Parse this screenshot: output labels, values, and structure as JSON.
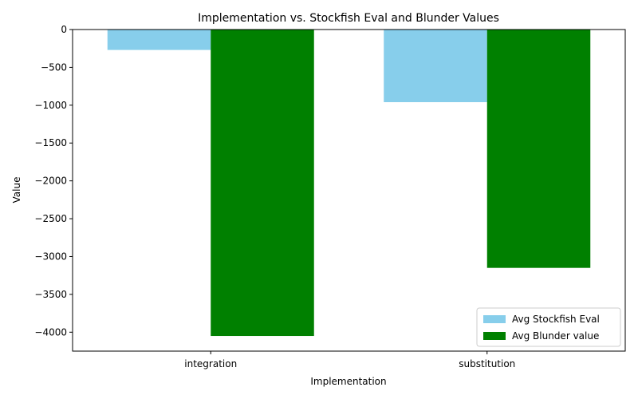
{
  "chart_data": {
    "type": "bar",
    "title": "Implementation vs. Stockfish Eval and Blunder Values",
    "xlabel": "Implementation",
    "ylabel": "Value",
    "categories": [
      "integration",
      "substitution"
    ],
    "series": [
      {
        "name": "Avg Stockfish Eval",
        "values": [
          -270,
          -960
        ],
        "color": "#87ceeb"
      },
      {
        "name": "Avg Blunder value",
        "values": [
          -4050,
          -3150
        ],
        "color": "#008000"
      }
    ],
    "ylim": [
      -4250,
      0
    ],
    "yticks": [
      0,
      -500,
      -1000,
      -1500,
      -2000,
      -2500,
      -3000,
      -3500,
      -4000
    ],
    "grid": false,
    "legend_position": "lower-right"
  }
}
